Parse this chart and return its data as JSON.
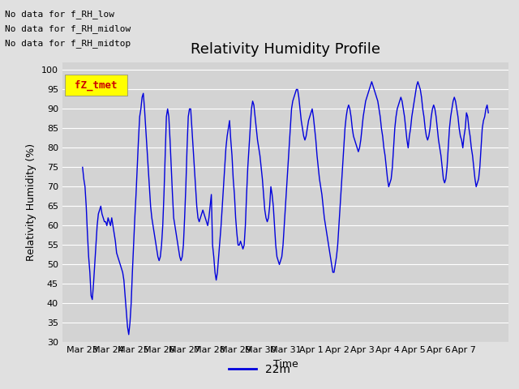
{
  "title": "Relativity Humidity Profile",
  "ylabel": "Relativity Humidity (%)",
  "xlabel": "Time",
  "legend_label": "22m",
  "line_color": "#0000dd",
  "bg_color": "#e0e0e0",
  "plot_bg_color": "#d3d3d3",
  "ylim": [
    30,
    102
  ],
  "yticks": [
    30,
    35,
    40,
    45,
    50,
    55,
    60,
    65,
    70,
    75,
    80,
    85,
    90,
    95,
    100
  ],
  "annotations": [
    "No data for f_RH_low",
    "No data for f_RH_midlow",
    "No data for f_RH_midtop"
  ],
  "legend_box_color": "#ffff00",
  "legend_text_color": "#cc0000",
  "legend_box_label": "fZ_tmet",
  "humidity_data": [
    75,
    72,
    70,
    65,
    58,
    52,
    48,
    42,
    41,
    45,
    50,
    55,
    60,
    63,
    64,
    65,
    63,
    62,
    61,
    61,
    60,
    62,
    61,
    60,
    62,
    60,
    58,
    56,
    53,
    52,
    51,
    50,
    49,
    48,
    46,
    42,
    38,
    34,
    32,
    35,
    40,
    48,
    55,
    62,
    68,
    75,
    82,
    88,
    90,
    93,
    94,
    90,
    85,
    80,
    75,
    70,
    65,
    62,
    60,
    58,
    56,
    54,
    52,
    51,
    52,
    55,
    60,
    68,
    78,
    88,
    90,
    88,
    82,
    75,
    68,
    62,
    60,
    58,
    56,
    54,
    52,
    51,
    52,
    55,
    62,
    70,
    80,
    88,
    90,
    90,
    85,
    80,
    75,
    70,
    65,
    62,
    61,
    62,
    63,
    64,
    63,
    62,
    61,
    60,
    62,
    65,
    68,
    55,
    52,
    48,
    46,
    48,
    52,
    56,
    60,
    65,
    70,
    75,
    80,
    83,
    85,
    87,
    82,
    78,
    72,
    68,
    62,
    58,
    55,
    55,
    56,
    55,
    54,
    55,
    60,
    68,
    75,
    80,
    85,
    90,
    92,
    91,
    88,
    85,
    82,
    80,
    78,
    75,
    72,
    68,
    64,
    62,
    61,
    62,
    65,
    70,
    68,
    65,
    60,
    55,
    52,
    51,
    50,
    51,
    52,
    55,
    60,
    65,
    70,
    75,
    80,
    85,
    90,
    92,
    93,
    94,
    95,
    95,
    93,
    90,
    87,
    85,
    83,
    82,
    83,
    85,
    87,
    88,
    89,
    90,
    88,
    85,
    82,
    78,
    75,
    72,
    70,
    68,
    65,
    62,
    60,
    58,
    56,
    54,
    52,
    50,
    48,
    48,
    50,
    52,
    55,
    60,
    65,
    70,
    75,
    80,
    85,
    88,
    90,
    91,
    90,
    88,
    85,
    83,
    82,
    81,
    80,
    79,
    80,
    82,
    85,
    88,
    90,
    92,
    93,
    94,
    95,
    96,
    97,
    96,
    95,
    94,
    93,
    92,
    90,
    88,
    85,
    83,
    80,
    78,
    75,
    72,
    70,
    71,
    72,
    75,
    80,
    85,
    88,
    90,
    91,
    92,
    93,
    92,
    90,
    88,
    85,
    82,
    80,
    83,
    85,
    88,
    90,
    92,
    94,
    96,
    97,
    96,
    95,
    93,
    90,
    88,
    85,
    83,
    82,
    83,
    85,
    88,
    90,
    91,
    90,
    88,
    85,
    82,
    80,
    78,
    75,
    72,
    71,
    72,
    75,
    80,
    85,
    88,
    90,
    92,
    93,
    92,
    90,
    88,
    85,
    83,
    82,
    80,
    83,
    85,
    89,
    88,
    85,
    83,
    80,
    78,
    75,
    72,
    70,
    71,
    72,
    75,
    80,
    85,
    87,
    88,
    90,
    91,
    89
  ]
}
